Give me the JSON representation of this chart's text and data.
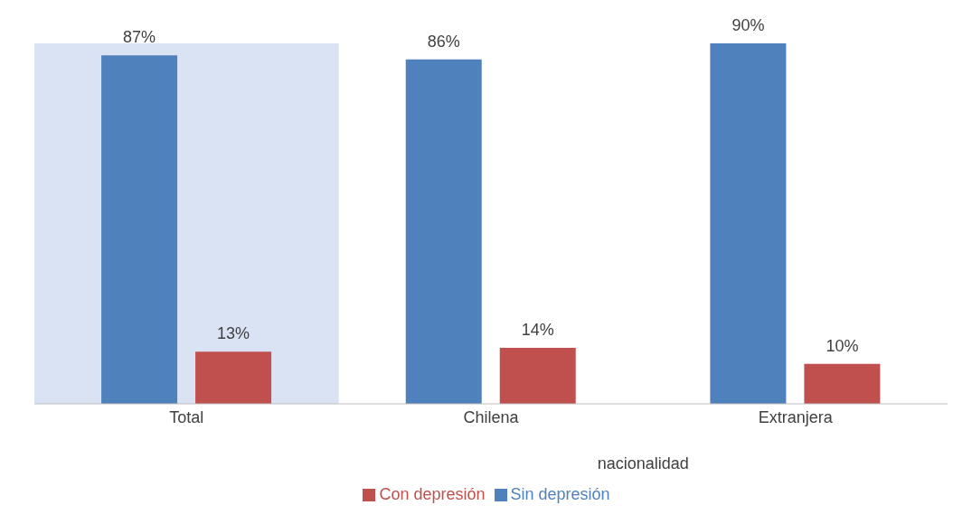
{
  "chart_data": {
    "type": "bar",
    "categories": [
      "Total",
      "Chilena",
      "Extranjera"
    ],
    "xlabel": "nacionalidad",
    "series": [
      {
        "name": "Sin depresión",
        "color": "#4f81bd",
        "values": [
          87,
          86,
          90
        ],
        "value_labels": [
          "87%",
          "86%",
          "90%"
        ]
      },
      {
        "name": "Con depresión",
        "color": "#c0504d",
        "values": [
          13,
          14,
          10
        ],
        "value_labels": [
          "13%",
          "14%",
          "10%"
        ]
      }
    ],
    "bands": [
      {
        "axis": "x",
        "from": "Total",
        "to": "Total",
        "color": "#dae3f3"
      }
    ],
    "legend": "bottom",
    "grid": false
  }
}
